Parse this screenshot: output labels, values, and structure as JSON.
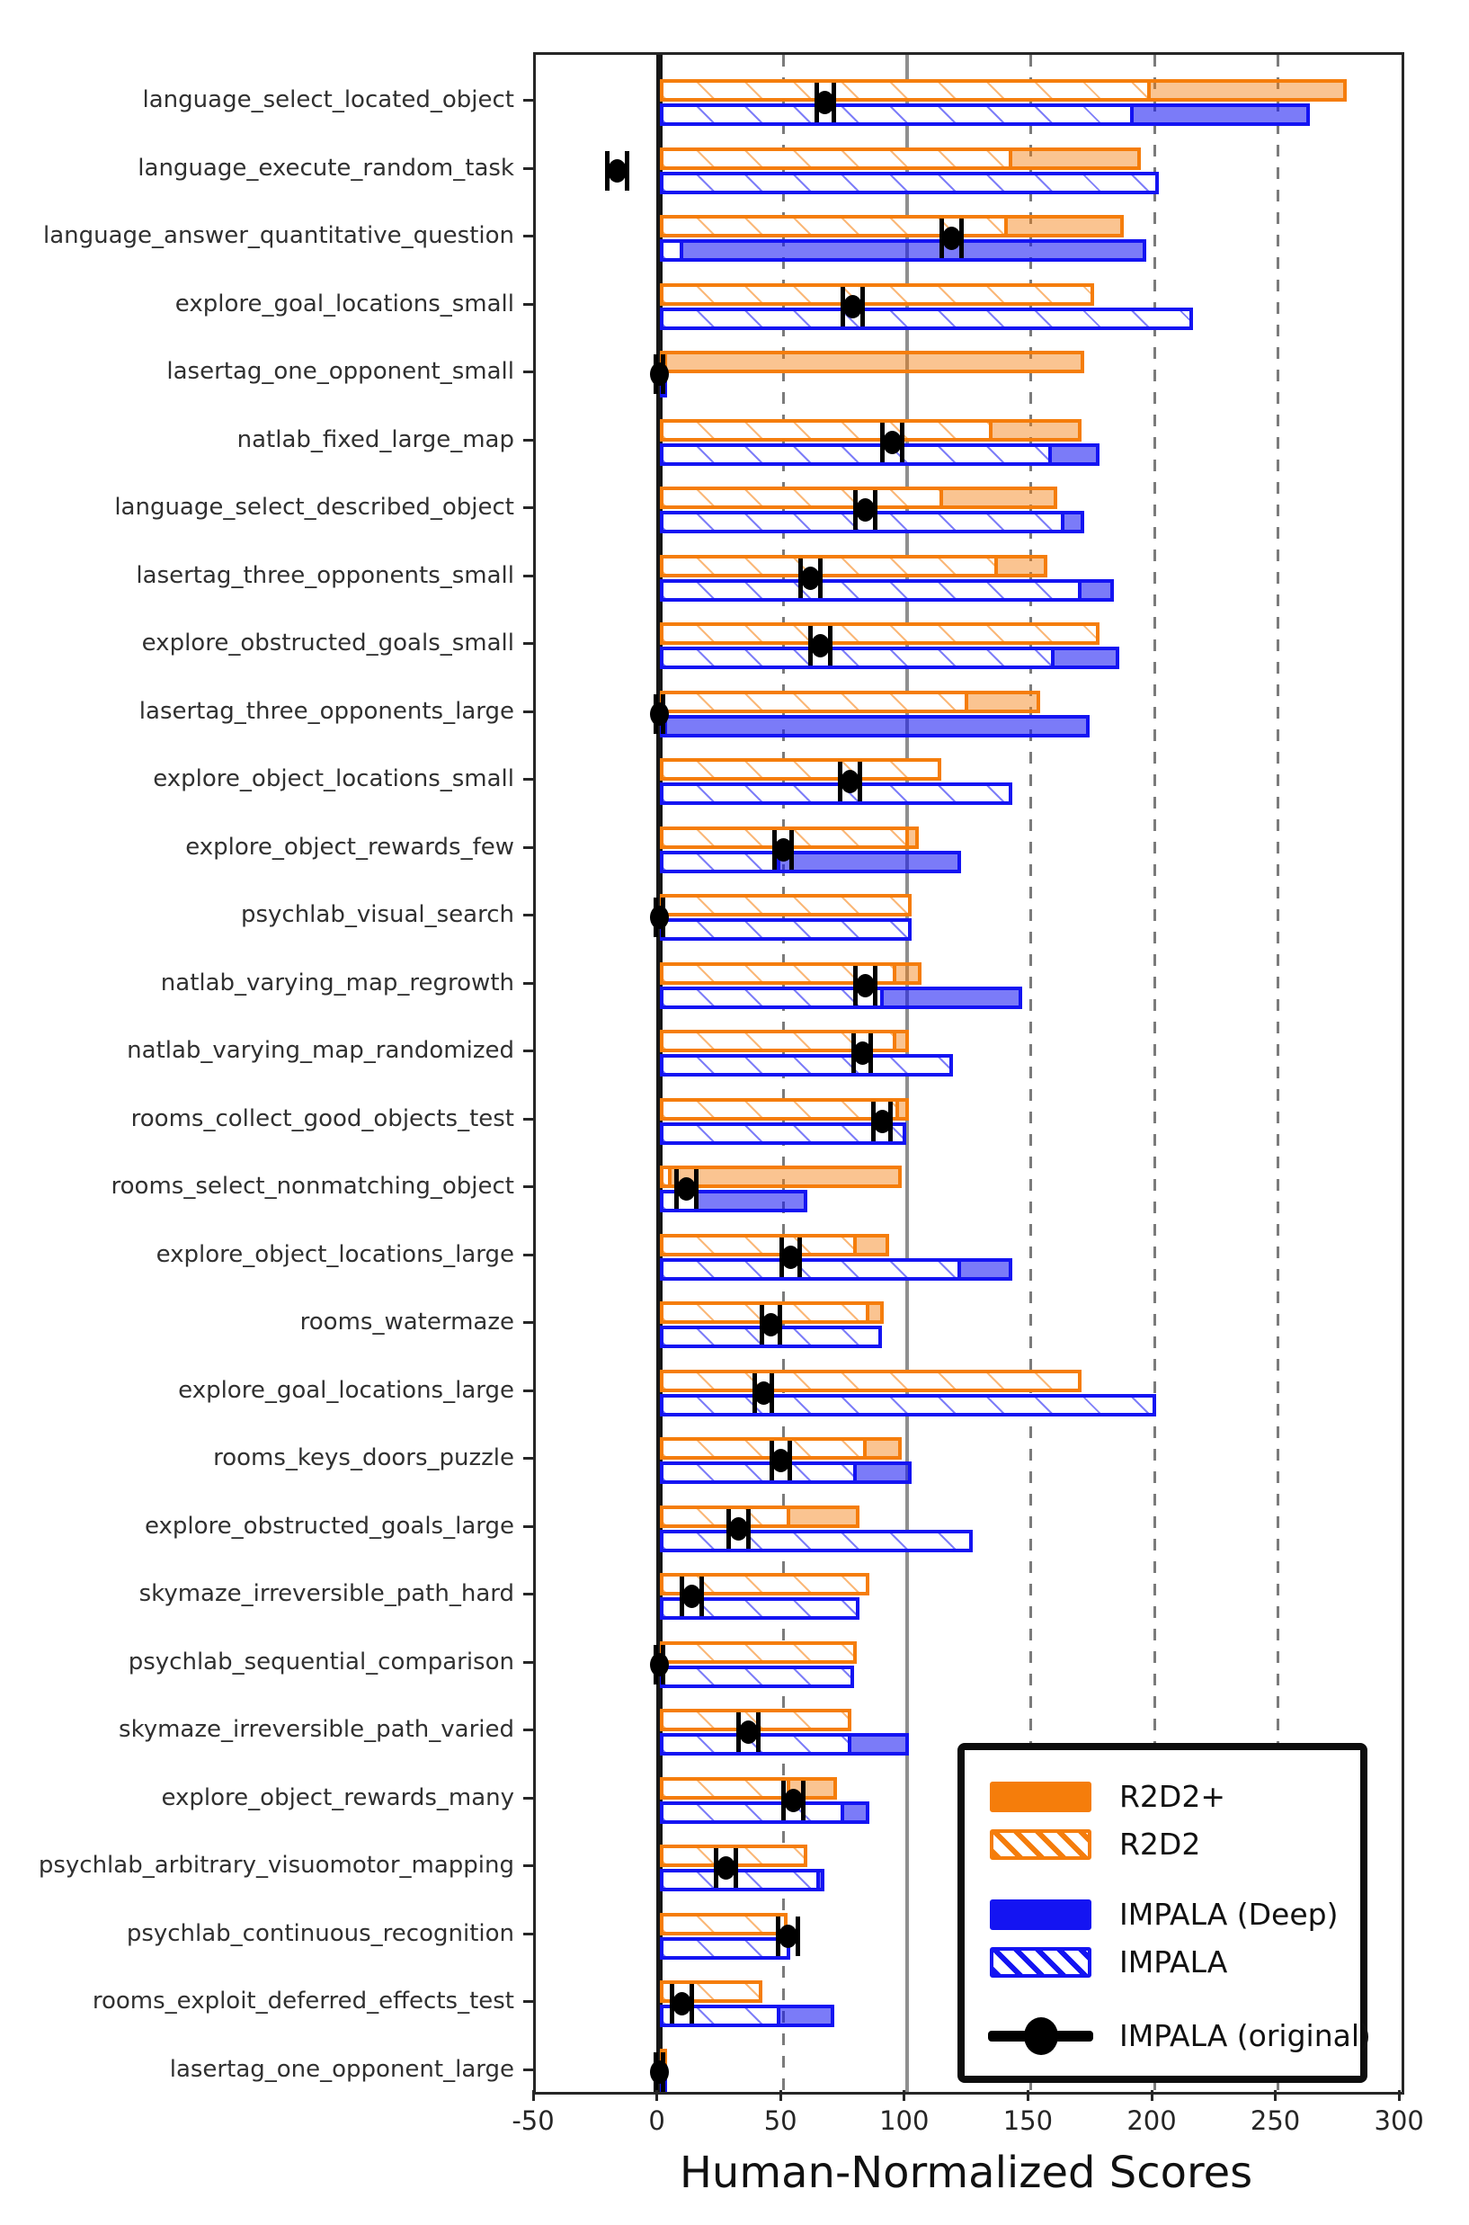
{
  "chart_data": {
    "type": "bar",
    "orientation": "horizontal",
    "title": "",
    "xlabel": "Human-Normalized Scores",
    "xlim": [
      -50,
      300
    ],
    "xticks": [
      -50,
      0,
      50,
      100,
      150,
      200,
      250,
      300
    ],
    "gridlines": [
      {
        "value": 0,
        "style": "zero"
      },
      {
        "value": 50,
        "style": "dashed"
      },
      {
        "value": 100,
        "style": "solid"
      },
      {
        "value": 150,
        "style": "dashed"
      },
      {
        "value": 200,
        "style": "dashed"
      },
      {
        "value": 250,
        "style": "dashed"
      }
    ],
    "legend_position": "lower right",
    "legend": [
      {
        "label": "R2D2+",
        "swatch": "solid-orange"
      },
      {
        "label": "R2D2",
        "swatch": "hatch-orange"
      },
      {
        "label": "IMPALA (Deep)",
        "swatch": "solid-blue"
      },
      {
        "label": "IMPALA",
        "swatch": "hatch-blue"
      },
      {
        "label": "IMPALA (original)",
        "swatch": "marker"
      }
    ],
    "series_names": [
      "R2D2+",
      "R2D2",
      "IMPALA (Deep)",
      "IMPALA",
      "IMPALA (original)"
    ],
    "tasks": [
      {
        "name": "language_select_located_object",
        "r2d2_plus": 277,
        "r2d2": 198,
        "impala_deep": 262,
        "impala": 191,
        "impala_original": 67,
        "err": 3.5
      },
      {
        "name": "language_execute_random_task",
        "r2d2_plus": 194,
        "r2d2": 142,
        "impala_deep": 196,
        "impala": 201,
        "impala_original": -17,
        "err": 4
      },
      {
        "name": "language_answer_quantitative_question",
        "r2d2_plus": 187,
        "r2d2": 140,
        "impala_deep": 196,
        "impala": 9,
        "impala_original": 118,
        "err": 4
      },
      {
        "name": "explore_goal_locations_small",
        "r2d2_plus": 172,
        "r2d2": 175,
        "impala_deep": 212,
        "impala": 215,
        "impala_original": 78,
        "err": 4
      },
      {
        "name": "lasertag_one_opponent_small",
        "r2d2_plus": 171,
        "r2d2": 2,
        "impala_deep": 1,
        "impala": 1,
        "impala_original": 0,
        "err": 1.5
      },
      {
        "name": "natlab_fixed_large_map",
        "r2d2_plus": 170,
        "r2d2": 134,
        "impala_deep": 177,
        "impala": 158,
        "impala_original": 94,
        "err": 4
      },
      {
        "name": "language_select_described_object",
        "r2d2_plus": 160,
        "r2d2": 114,
        "impala_deep": 171,
        "impala": 163,
        "impala_original": 83,
        "err": 4
      },
      {
        "name": "lasertag_three_opponents_small",
        "r2d2_plus": 156,
        "r2d2": 136,
        "impala_deep": 183,
        "impala": 170,
        "impala_original": 61,
        "err": 4
      },
      {
        "name": "explore_obstructed_goals_small",
        "r2d2_plus": 174,
        "r2d2": 177,
        "impala_deep": 185,
        "impala": 159,
        "impala_original": 65,
        "err": 4
      },
      {
        "name": "lasertag_three_opponents_large",
        "r2d2_plus": 153,
        "r2d2": 124,
        "impala_deep": 173,
        "impala": 2,
        "impala_original": 0,
        "err": 1.5
      },
      {
        "name": "explore_object_locations_small",
        "r2d2_plus": 112,
        "r2d2": 113,
        "impala_deep": 140,
        "impala": 142,
        "impala_original": 77,
        "err": 4
      },
      {
        "name": "explore_object_rewards_few",
        "r2d2_plus": 104,
        "r2d2": 100,
        "impala_deep": 121,
        "impala": 48,
        "impala_original": 50,
        "err": 3.5
      },
      {
        "name": "psychlab_visual_search",
        "r2d2_plus": 100,
        "r2d2": 101,
        "impala_deep": 100,
        "impala": 101,
        "impala_original": 0,
        "err": 1.5
      },
      {
        "name": "natlab_varying_map_regrowth",
        "r2d2_plus": 105,
        "r2d2": 95,
        "impala_deep": 146,
        "impala": 90,
        "impala_original": 83,
        "err": 4
      },
      {
        "name": "natlab_varying_map_randomized",
        "r2d2_plus": 100,
        "r2d2": 95,
        "impala_deep": 116,
        "impala": 118,
        "impala_original": 82,
        "err": 3.5
      },
      {
        "name": "rooms_collect_good_objects_test",
        "r2d2_plus": 100,
        "r2d2": 96,
        "impala_deep": 98,
        "impala": 99,
        "impala_original": 90,
        "err": 3.5
      },
      {
        "name": "rooms_select_nonmatching_object",
        "r2d2_plus": 97,
        "r2d2": 4,
        "impala_deep": 59,
        "impala": 15,
        "impala_original": 11,
        "err": 4
      },
      {
        "name": "explore_object_locations_large",
        "r2d2_plus": 92,
        "r2d2": 79,
        "impala_deep": 142,
        "impala": 121,
        "impala_original": 53,
        "err": 3.5
      },
      {
        "name": "rooms_watermaze",
        "r2d2_plus": 90,
        "r2d2": 84,
        "impala_deep": 88,
        "impala": 89,
        "impala_original": 45,
        "err": 3.5
      },
      {
        "name": "explore_goal_locations_large",
        "r2d2_plus": 168,
        "r2d2": 170,
        "impala_deep": 198,
        "impala": 200,
        "impala_original": 42,
        "err": 3.5
      },
      {
        "name": "rooms_keys_doors_puzzle",
        "r2d2_plus": 97,
        "r2d2": 83,
        "impala_deep": 101,
        "impala": 79,
        "impala_original": 49,
        "err": 3.5
      },
      {
        "name": "explore_obstructed_goals_large",
        "r2d2_plus": 80,
        "r2d2": 52,
        "impala_deep": 124,
        "impala": 126,
        "impala_original": 32,
        "err": 4
      },
      {
        "name": "skymaze_irreversible_path_hard",
        "r2d2_plus": 83,
        "r2d2": 84,
        "impala_deep": 79,
        "impala": 80,
        "impala_original": 13,
        "err": 4
      },
      {
        "name": "psychlab_sequential_comparison",
        "r2d2_plus": 78,
        "r2d2": 79,
        "impala_deep": 77,
        "impala": 78,
        "impala_original": 0,
        "err": 1.5
      },
      {
        "name": "skymaze_irreversible_path_varied",
        "r2d2_plus": 76,
        "r2d2": 77,
        "impala_deep": 100,
        "impala": 77,
        "impala_original": 36,
        "err": 4
      },
      {
        "name": "explore_object_rewards_many",
        "r2d2_plus": 71,
        "r2d2": 52,
        "impala_deep": 84,
        "impala": 74,
        "impala_original": 54,
        "err": 4
      },
      {
        "name": "psychlab_arbitrary_visuomotor_mapping",
        "r2d2_plus": 58,
        "r2d2": 59,
        "impala_deep": 66,
        "impala": 64,
        "impala_original": 27,
        "err": 4
      },
      {
        "name": "psychlab_continuous_recognition",
        "r2d2_plus": 50,
        "r2d2": 51,
        "impala_deep": 51,
        "impala": 52,
        "impala_original": 52,
        "err": 4
      },
      {
        "name": "rooms_exploit_deferred_effects_test",
        "r2d2_plus": 40,
        "r2d2": 41,
        "impala_deep": 70,
        "impala": 48,
        "impala_original": 9,
        "err": 4
      },
      {
        "name": "lasertag_one_opponent_large",
        "r2d2_plus": 2,
        "r2d2": 1,
        "impala_deep": 1,
        "impala": 1,
        "impala_original": 0,
        "err": 1.5
      }
    ]
  },
  "colors": {
    "orange": "#f57d0b",
    "blue": "#1414f2",
    "orange_fill": "rgba(245,125,11,0.45)",
    "blue_fill": "rgba(20,20,242,0.56)",
    "marker": "#000000",
    "grid": "#7b7b7b",
    "grid_solid": "#8f8f8f",
    "zero_line": "#161616"
  }
}
